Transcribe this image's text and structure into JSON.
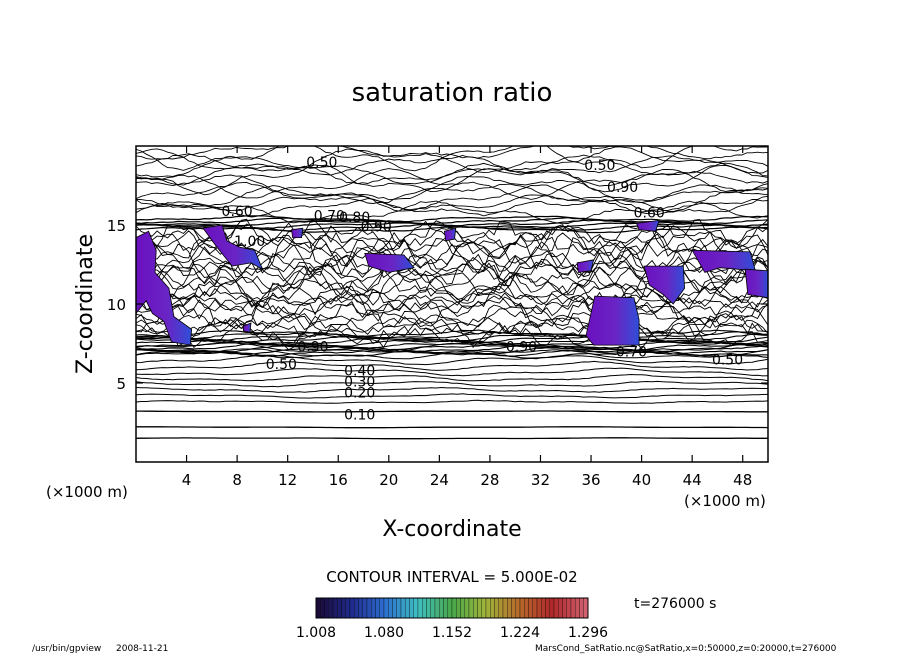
{
  "footer": {
    "program": "/usr/bin/gpview",
    "date": "2008-11-21",
    "source": "MarsCond_SatRatio.nc@SatRatio,x=0:50000,z=0:20000,t=276000"
  },
  "chart_data": {
    "type": "contour",
    "title": "saturation ratio",
    "xlabel": "X-coordinate",
    "ylabel": "Z-coordinate",
    "x_unit": "(×1000 m)",
    "y_unit": "(×1000 m)",
    "xlim": [
      0,
      50
    ],
    "ylim": [
      0,
      20
    ],
    "x_ticks": [
      4,
      8,
      12,
      16,
      20,
      24,
      28,
      32,
      36,
      40,
      44,
      48
    ],
    "y_ticks": [
      5,
      10,
      15
    ],
    "contour_interval_label": "CONTOUR INTERVAL = 5.000E-02",
    "time_label": "t=276000 s",
    "contour_labels": [
      {
        "text": "0.10",
        "x": 17.7,
        "z": 3.0
      },
      {
        "text": "0.20",
        "x": 17.7,
        "z": 4.4
      },
      {
        "text": "0.30",
        "x": 17.7,
        "z": 5.1
      },
      {
        "text": "0.40",
        "x": 17.7,
        "z": 5.8
      },
      {
        "text": "0.50",
        "x": 11.5,
        "z": 6.2
      },
      {
        "text": "0.90",
        "x": 14.0,
        "z": 7.3
      },
      {
        "text": "0.90",
        "x": 30.5,
        "z": 7.3
      },
      {
        "text": "0.70",
        "x": 39.2,
        "z": 7.0
      },
      {
        "text": "0.50",
        "x": 46.8,
        "z": 6.5
      },
      {
        "text": "0.60",
        "x": 8.0,
        "z": 15.9
      },
      {
        "text": "0.70",
        "x": 15.3,
        "z": 15.6
      },
      {
        "text": "0.80",
        "x": 17.3,
        "z": 15.5
      },
      {
        "text": "0.90",
        "x": 19.0,
        "z": 14.9
      },
      {
        "text": "1.00",
        "x": 9.0,
        "z": 14.0
      },
      {
        "text": "0.50",
        "x": 14.7,
        "z": 19.0
      },
      {
        "text": "0.50",
        "x": 36.7,
        "z": 18.8
      },
      {
        "text": "0.90",
        "x": 38.5,
        "z": 17.4
      },
      {
        "text": "0.60",
        "x": 40.6,
        "z": 15.8
      }
    ],
    "colorbar": {
      "min": 1.008,
      "max": 1.296,
      "tick_labels": [
        "1.008",
        "1.080",
        "1.152",
        "1.224",
        "1.296"
      ],
      "colors": [
        "#1a0b3a",
        "#1f2a8c",
        "#2d6fd0",
        "#3fbfc0",
        "#49a84a",
        "#9fb43a",
        "#b76a2a",
        "#b0282a",
        "#d06070"
      ]
    },
    "shaded_regions_color": "#7a2ab8",
    "grid": false,
    "legend": "colorbar-bottom"
  }
}
